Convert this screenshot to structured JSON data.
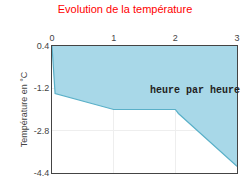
{
  "chart_data": {
    "type": "area",
    "title": "Evolution de la température",
    "ylabel": "Température en °C",
    "x": [
      0,
      0.05,
      1.0,
      2.0,
      2.05,
      3.0
    ],
    "series": [
      {
        "type": "area",
        "color": "#a8d8e8",
        "values": [
          0.4,
          -1.4,
          -2.0,
          -2.0,
          -2.15,
          -4.15
        ]
      },
      {
        "type": "line",
        "color": "#5ab0c8",
        "values": [
          0.4,
          -1.4,
          -2.0,
          -2.0,
          -2.15,
          -4.15
        ]
      }
    ],
    "annotations": [
      {
        "text": "heure par heure",
        "x": 1.55,
        "y": -1.3
      }
    ],
    "xlim": [
      0,
      3
    ],
    "ylim": [
      -4.4,
      0.4
    ],
    "xticks": [
      0,
      1,
      2,
      3
    ],
    "yticks": [
      0.4,
      -1.2,
      -2.8,
      -4.4
    ],
    "grid": true
  }
}
